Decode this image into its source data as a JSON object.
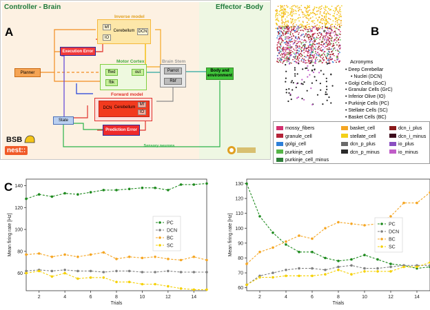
{
  "panel_a": {
    "letter": "A",
    "region_left": "Controller - Brain",
    "region_right": "Effector -Body",
    "inverse_title": "Inverse model",
    "motor_title": "Motor Cortex",
    "brainstem_title": "Brain Stem",
    "forward_title": "Forward model",
    "mf": "Mf",
    "io": "IO",
    "cerebellum": "Cerebellum",
    "dcn": "DCN",
    "mf2": "Mf",
    "io2": "IO",
    "cerebellum2": "Cerebellum",
    "dcn2": "DCN",
    "execution_error": "Execution Error",
    "planner": "Planner",
    "ffwd": "ffwd",
    "fbk": "fbk",
    "out": "out",
    "parrot": "Parrot",
    "rbf": "Rbf",
    "body_env": "Body and environment",
    "state": "State",
    "prediction_error": "Prediction Error",
    "sensory_neurons": "Sensory neurons",
    "bsb": "BSB",
    "nest": "nest::"
  },
  "panel_b": {
    "letter": "B",
    "acronyms_title": "Acronyms",
    "acronyms": [
      "Deep Cerebellar",
      "Nuclei (DCN)",
      "Golgi Cells (GoC)",
      "Granular Cells (GrC)",
      "Inferior Olive (IO)",
      "Purkinje Cells (PC)",
      "Stellate Cells (SC)",
      "Basket Cells (BC)"
    ],
    "legend": [
      {
        "label": "mossy_fibers",
        "color": "#d3306f"
      },
      {
        "label": "basket_cell",
        "color": "#f5a623"
      },
      {
        "label": "dcn_i_plus",
        "color": "#8b1a1a"
      },
      {
        "label": "granule_cell",
        "color": "#b52338"
      },
      {
        "label": "stellate_cell",
        "color": "#f3d018"
      },
      {
        "label": "dcn_i_minus",
        "color": "#3d0c1c"
      },
      {
        "label": "golgi_cell",
        "color": "#2d7fd8"
      },
      {
        "label": "dcn_p_plus",
        "color": "#6a6a6a"
      },
      {
        "label": "io_plus",
        "color": "#8a4fc1"
      },
      {
        "label": "purkinje_cell",
        "color": "#56b548"
      },
      {
        "label": "dcn_p_minus",
        "color": "#2b2b2b"
      },
      {
        "label": "io_minus",
        "color": "#c05cc8"
      },
      {
        "label": "purkinje_cell_minus",
        "color": "#2f7f3a"
      }
    ]
  },
  "panel_c": {
    "letter": "C"
  },
  "chart_data": [
    {
      "type": "line",
      "xlabel": "Trials",
      "ylabel": "Mean firing rate [Hz]",
      "xlim": [
        1,
        15
      ],
      "ylim": [
        44,
        146
      ],
      "xticks": [
        2,
        4,
        6,
        8,
        10,
        12,
        14
      ],
      "yticks": [
        60,
        80,
        100,
        120,
        140
      ],
      "legend_position": "right",
      "x": [
        1,
        2,
        3,
        4,
        5,
        6,
        7,
        8,
        9,
        10,
        11,
        12,
        13,
        14,
        15
      ],
      "series": [
        {
          "name": "PC",
          "color": "#1e8a1e",
          "values": [
            128,
            132,
            130,
            133,
            132,
            134,
            136,
            136,
            137,
            138,
            138,
            136,
            141,
            141,
            142
          ]
        },
        {
          "name": "DCN",
          "color": "#7f7f7f",
          "values": [
            62,
            63,
            62,
            63,
            62,
            62,
            61,
            62,
            62,
            61,
            61,
            62,
            61,
            61,
            61
          ]
        },
        {
          "name": "BC",
          "color": "#f5a623",
          "values": [
            77,
            78,
            75,
            77,
            75,
            77,
            79,
            73,
            75,
            74,
            75,
            73,
            72,
            75,
            72
          ]
        },
        {
          "name": "SC",
          "color": "#f5d000",
          "values": [
            60,
            62,
            57,
            60,
            55,
            56,
            56,
            52,
            52,
            50,
            50,
            48,
            46,
            45,
            45
          ]
        }
      ]
    },
    {
      "type": "line",
      "xlabel": "Trials",
      "ylabel": "Mean firing rate [Hz]",
      "xlim": [
        1,
        15
      ],
      "ylim": [
        58,
        133
      ],
      "xticks": [
        2,
        4,
        6,
        8,
        10,
        12,
        14
      ],
      "yticks": [
        60,
        70,
        80,
        90,
        100,
        110,
        120,
        130
      ],
      "legend_position": "right",
      "x": [
        1,
        2,
        3,
        4,
        5,
        6,
        7,
        8,
        9,
        10,
        11,
        12,
        13,
        14,
        15
      ],
      "series": [
        {
          "name": "PC",
          "color": "#1e8a1e",
          "values": [
            130,
            108,
            97,
            89,
            84,
            84,
            80,
            78,
            79,
            82,
            79,
            76,
            75,
            73,
            74
          ]
        },
        {
          "name": "DCN",
          "color": "#7f7f7f",
          "values": [
            62,
            68,
            70,
            72,
            73,
            73,
            72,
            74,
            75,
            73,
            73,
            74,
            75,
            75,
            75
          ]
        },
        {
          "name": "BC",
          "color": "#f5a623",
          "values": [
            76,
            84,
            87,
            91,
            95,
            93,
            100,
            104,
            103,
            102,
            103,
            108,
            117,
            117,
            124
          ]
        },
        {
          "name": "SC",
          "color": "#f5d000",
          "values": [
            62,
            67,
            67,
            68,
            68,
            68,
            69,
            72,
            69,
            71,
            71,
            71,
            74,
            74,
            77
          ]
        }
      ]
    }
  ]
}
